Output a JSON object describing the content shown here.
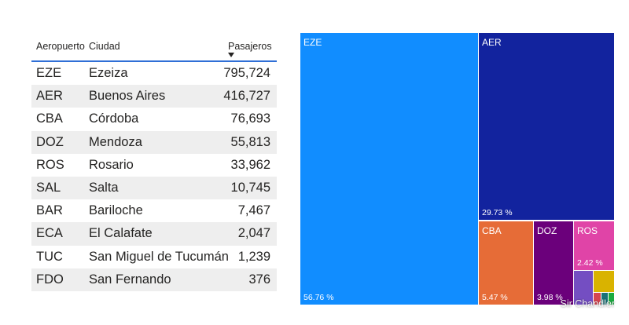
{
  "table": {
    "headers": {
      "airport": "Aeropuerto",
      "city": "Ciudad",
      "passengers": "Pasajeros"
    },
    "sort": "descending-by-passengers",
    "rows": [
      {
        "code": "EZE",
        "city": "Ezeiza",
        "passengers": "795,724"
      },
      {
        "code": "AER",
        "city": "Buenos Aires",
        "passengers": "416,727"
      },
      {
        "code": "CBA",
        "city": "Córdoba",
        "passengers": "76,693"
      },
      {
        "code": "DOZ",
        "city": "Mendoza",
        "passengers": "55,813"
      },
      {
        "code": "ROS",
        "city": "Rosario",
        "passengers": "33,962"
      },
      {
        "code": "SAL",
        "city": "Salta",
        "passengers": "10,745"
      },
      {
        "code": "BAR",
        "city": "Bariloche",
        "passengers": "7,467"
      },
      {
        "code": "ECA",
        "city": "El Calafate",
        "passengers": "2,047"
      },
      {
        "code": "TUC",
        "city": "San Miguel de Tucumán",
        "passengers": "1,239"
      },
      {
        "code": "FDO",
        "city": "San Fernando",
        "passengers": "376"
      }
    ]
  },
  "treemap": {
    "tiles": [
      {
        "name": "EZE",
        "percent": "56.76 %",
        "color": "#118dff"
      },
      {
        "name": "AER",
        "percent": "29.73 %",
        "color": "#12239e"
      },
      {
        "name": "CBA",
        "percent": "5.47 %",
        "color": "#e66c37"
      },
      {
        "name": "DOZ",
        "percent": "3.98 %",
        "color": "#6b007b"
      },
      {
        "name": "ROS",
        "percent": "2.42 %",
        "color": "#e044a7"
      },
      {
        "name": "",
        "percent": "",
        "color": "#744ec2"
      },
      {
        "name": "",
        "percent": "",
        "color": "#d9b300"
      },
      {
        "name": "",
        "percent": "",
        "color": "#d64550"
      },
      {
        "name": "",
        "percent": "",
        "color": "#197278"
      },
      {
        "name": "",
        "percent": "",
        "color": "#1aab40"
      }
    ]
  },
  "watermark": "Sir Chandler"
}
